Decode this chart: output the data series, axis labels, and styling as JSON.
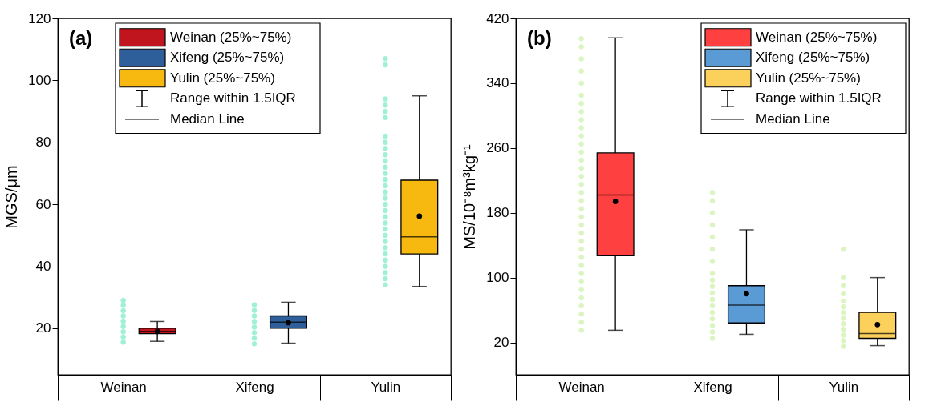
{
  "chart_data": [
    {
      "type": "box",
      "title": "(a)",
      "ylabel": "MGS/μm",
      "categories": [
        "Weinan",
        "Xifeng",
        "Yulin"
      ],
      "ylim": [
        5,
        120
      ],
      "yticks": [
        20,
        40,
        60,
        80,
        100,
        120
      ],
      "grid": false,
      "legend": "top left",
      "annotations": [
        "Range within 1.5IQR",
        "Median Line"
      ],
      "series": [
        {
          "name": "Weinan (25%~75%)",
          "color": "#c0141e",
          "boxes": [
            {
              "low": 15.8,
              "q1": 18.3,
              "median": 19,
              "q3": 20,
              "high": 22.2,
              "mean": 19
            },
            null,
            null
          ]
        },
        {
          "name": "Xifeng (25%~75%)",
          "color": "#2e5f9a",
          "boxes": [
            null,
            {
              "low": 15.2,
              "q1": 20,
              "median": 22,
              "q3": 24,
              "high": 28.4,
              "mean": 21.8
            },
            null
          ]
        },
        {
          "name": "Yulin (25%~75%)",
          "color": "#f7b90f",
          "boxes": [
            null,
            null,
            {
              "low": 33.5,
              "q1": 44,
              "median": 49.5,
              "q3": 67.8,
              "high": 95,
              "mean": 56.2
            }
          ]
        },
        {
          "type": "scatter",
          "color": "#a0f0d8",
          "x": [
            "Weinan",
            "Weinan",
            "Weinan",
            "Weinan",
            "Weinan",
            "Weinan",
            "Weinan",
            "Weinan",
            "Weinan"
          ],
          "values": [
            15.5,
            17.2,
            18.9,
            20.6,
            22.3,
            24,
            25.7,
            27.4,
            29
          ]
        },
        {
          "type": "scatter",
          "color": "#a0f0d8",
          "x": [
            "Xifeng",
            "Xifeng",
            "Xifeng",
            "Xifeng",
            "Xifeng",
            "Xifeng",
            "Xifeng",
            "Xifeng"
          ],
          "values": [
            15,
            16.8,
            18.6,
            20.4,
            22.2,
            24,
            25.8,
            27.6
          ]
        },
        {
          "type": "scatter",
          "color": "#a0f0d8",
          "x": [
            "Yulin",
            "Yulin",
            "Yulin",
            "Yulin",
            "Yulin",
            "Yulin",
            "Yulin",
            "Yulin",
            "Yulin",
            "Yulin",
            "Yulin",
            "Yulin",
            "Yulin",
            "Yulin",
            "Yulin",
            "Yulin",
            "Yulin",
            "Yulin",
            "Yulin",
            "Yulin",
            "Yulin",
            "Yulin",
            "Yulin",
            "Yulin",
            "Yulin",
            "Yulin",
            "Yulin",
            "Yulin",
            "Yulin",
            "Yulin",
            "Yulin"
          ],
          "values": [
            34,
            36,
            38,
            40,
            42,
            44,
            46,
            48,
            50,
            52,
            54,
            56,
            58,
            60,
            62,
            64,
            66,
            68,
            70,
            72,
            74,
            76,
            78,
            80,
            82,
            88,
            90,
            92,
            94,
            105,
            107
          ]
        }
      ]
    },
    {
      "type": "box",
      "title": "(b)",
      "ylabel": "MS/10⁻⁸m³kg⁻¹",
      "categories": [
        "Weinan",
        "Xifeng",
        "Yulin"
      ],
      "ylim": [
        -20,
        420
      ],
      "yticks": [
        20,
        100,
        180,
        260,
        340,
        420
      ],
      "grid": false,
      "legend": "top right",
      "annotations": [
        "Range within 1.5IQR",
        "Median Line"
      ],
      "series": [
        {
          "name": "Weinan (25%~75%)",
          "color": "#ff4040",
          "boxes": [
            {
              "low": 35,
              "q1": 127,
              "median": 202,
              "q3": 254,
              "high": 396,
              "mean": 194
            },
            null,
            null
          ]
        },
        {
          "name": "Xifeng (25%~75%)",
          "color": "#5b9bd5",
          "boxes": [
            null,
            {
              "low": 30,
              "q1": 44,
              "median": 66,
              "q3": 90,
              "high": 159,
              "mean": 80
            },
            null
          ]
        },
        {
          "name": "Yulin (25%~75%)",
          "color": "#fbd15b",
          "boxes": [
            null,
            null,
            {
              "low": 16,
              "q1": 25,
              "median": 31,
              "q3": 57,
              "high": 100,
              "mean": 42
            }
          ]
        },
        {
          "type": "scatter",
          "color": "#dcf5c0",
          "x": [
            "Weinan",
            "Weinan",
            "Weinan",
            "Weinan",
            "Weinan",
            "Weinan",
            "Weinan",
            "Weinan",
            "Weinan",
            "Weinan",
            "Weinan",
            "Weinan",
            "Weinan",
            "Weinan",
            "Weinan",
            "Weinan",
            "Weinan",
            "Weinan",
            "Weinan",
            "Weinan",
            "Weinan",
            "Weinan",
            "Weinan",
            "Weinan",
            "Weinan",
            "Weinan",
            "Weinan",
            "Weinan",
            "Weinan",
            "Weinan",
            "Weinan",
            "Weinan",
            "Weinan",
            "Weinan",
            "Weinan"
          ],
          "values": [
            35,
            45,
            55,
            65,
            75,
            85,
            95,
            105,
            115,
            125,
            135,
            145,
            155,
            165,
            175,
            185,
            195,
            205,
            215,
            225,
            235,
            245,
            255,
            265,
            275,
            285,
            295,
            305,
            315,
            325,
            340,
            355,
            370,
            385,
            395
          ]
        },
        {
          "type": "scatter",
          "color": "#dcf5c0",
          "x": [
            "Xifeng",
            "Xifeng",
            "Xifeng",
            "Xifeng",
            "Xifeng",
            "Xifeng",
            "Xifeng",
            "Xifeng",
            "Xifeng",
            "Xifeng",
            "Xifeng",
            "Xifeng",
            "Xifeng",
            "Xifeng",
            "Xifeng",
            "Xifeng",
            "Xifeng",
            "Xifeng"
          ],
          "values": [
            25,
            33,
            41,
            49,
            57,
            65,
            73,
            81,
            89,
            97,
            105,
            120,
            135,
            150,
            165,
            180,
            195,
            205
          ]
        },
        {
          "type": "scatter",
          "color": "#dcf5c0",
          "x": [
            "Yulin",
            "Yulin",
            "Yulin",
            "Yulin",
            "Yulin",
            "Yulin",
            "Yulin",
            "Yulin",
            "Yulin",
            "Yulin",
            "Yulin",
            "Yulin",
            "Yulin"
          ],
          "values": [
            15,
            22,
            29,
            36,
            43,
            50,
            57,
            64,
            71,
            80,
            90,
            100,
            135
          ]
        }
      ]
    }
  ]
}
